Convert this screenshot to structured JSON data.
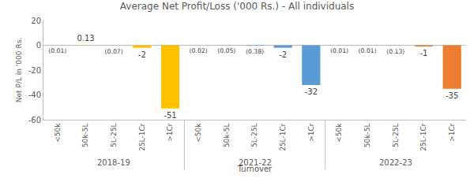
{
  "chart_data": {
    "type": "bar",
    "title": "Average Net Profit/Loss ('000 Rs.) - All individuals",
    "x_label": "Turnover",
    "y_label": "Net P/L in '000 Rs.",
    "categories": [
      "<50k",
      "50k-5L",
      "5L-25L",
      "25L-1Cr",
      ">1Cr"
    ],
    "series": [
      {
        "name": "2018-19",
        "color": "#FFC000",
        "values": [
          -0.01,
          0.13,
          -0.07,
          -2,
          -51
        ],
        "value_labels": [
          "(0.01)",
          "0.13",
          "(0.07)",
          "-2",
          "-51"
        ]
      },
      {
        "name": "2021-22",
        "color": "#5B9BD5",
        "values": [
          -0.02,
          -0.05,
          -0.38,
          -2,
          -32
        ],
        "value_labels": [
          "(0.02)",
          "(0.05)",
          "(0.38)",
          "-2",
          "-32"
        ]
      },
      {
        "name": "2022-23",
        "color": "#ED7D31",
        "values": [
          -0.01,
          -0.01,
          -0.13,
          -1,
          -35
        ],
        "value_labels": [
          "(0.01)",
          "(0.01)",
          "(0.13)",
          "-1",
          "-35"
        ]
      }
    ],
    "ylim": [
      -60,
      20
    ],
    "yticks": [
      -60,
      -40,
      -20,
      0,
      20
    ],
    "grid": false,
    "data_labels": true
  }
}
